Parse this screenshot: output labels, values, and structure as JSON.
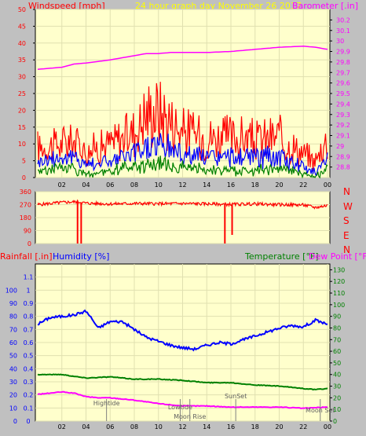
{
  "header": {
    "windspeed_label": "Windspeed [mph]",
    "title": "24 hour graph day   November 26 2017",
    "barometer_label": "Barometer [.in]"
  },
  "lower_header": {
    "rainfall_label": "Rainfall [.in]",
    "humidity_label": "Humidity [%]",
    "temperature_label": "Temperature [°F]",
    "dewpoint_label": "Dew Point [°F]"
  },
  "colors": {
    "background": "#c0c0c0",
    "plot_bg": "#ffffcc",
    "wind_max": "#ff0000",
    "wind_gust": "#0000ff",
    "wind_avg": "#008000",
    "barometer": "#ff00ff",
    "direction": "#ff0000",
    "humidity": "#0000ff",
    "temperature": "#008000",
    "dewpoint": "#ff00ff",
    "rain_axis": "#0000ff",
    "temp_axis": "#008000"
  },
  "x_ticks": [
    "02",
    "04",
    "06",
    "08",
    "10",
    "12",
    "14",
    "16",
    "18",
    "20",
    "22",
    "00"
  ],
  "chart_data": [
    {
      "type": "line",
      "title": "24 hour graph day   November 26 2017",
      "xlabel": "",
      "ylabel": "Windspeed [mph]",
      "y2label": "Barometer [.in]",
      "x_hours": [
        0,
        2,
        3,
        4,
        6,
        8,
        9,
        10,
        11,
        12,
        14,
        16,
        18,
        20,
        22,
        23,
        24
      ],
      "ylim": [
        0,
        50
      ],
      "y_ticks": [
        0,
        5,
        10,
        15,
        20,
        25,
        30,
        35,
        40,
        45,
        50
      ],
      "y2lim": [
        28.7,
        30.3
      ],
      "y2_ticks": [
        "28.8",
        "28.9",
        "29",
        "29.1",
        "29.2",
        "29.3",
        "29.4",
        "29.5",
        "29.6",
        "29.7",
        "29.8",
        "29.9",
        "30",
        "30.1",
        "30.2"
      ],
      "series": [
        {
          "values": [
            9,
            10,
            11,
            8,
            10,
            14,
            19,
            20,
            17,
            14,
            12,
            12,
            11,
            12,
            7,
            5,
            12
          ],
          "axis": "left"
        },
        {
          "values": [
            5,
            6,
            6,
            4,
            5,
            7,
            9,
            10,
            9,
            7,
            6,
            6,
            6,
            6,
            3,
            2,
            6
          ],
          "axis": "left"
        },
        {
          "values": [
            2,
            3,
            3,
            1,
            2,
            3,
            4,
            4,
            4,
            3,
            2,
            2,
            2,
            3,
            1,
            0.5,
            3
          ],
          "axis": "left"
        },
        {
          "values": [
            29.73,
            29.75,
            29.78,
            29.79,
            29.82,
            29.86,
            29.88,
            29.88,
            29.89,
            29.89,
            29.89,
            29.9,
            29.92,
            29.94,
            29.95,
            29.94,
            29.92
          ],
          "axis": "right"
        }
      ]
    },
    {
      "type": "line",
      "ylabel_right": [
        "N",
        "W",
        "S",
        "E",
        "N"
      ],
      "ylim": [
        0,
        360
      ],
      "y_ticks": [
        0,
        90,
        180,
        270,
        360
      ],
      "series": [
        {
          "x_hours": [
            0,
            2,
            3.3,
            4,
            6,
            8,
            10,
            12,
            14,
            16,
            18,
            20,
            22,
            23,
            24
          ],
          "values": [
            270,
            285,
            290,
            280,
            275,
            278,
            276,
            278,
            275,
            272,
            275,
            270,
            268,
            250,
            265
          ]
        }
      ],
      "dips": [
        {
          "hour": 3.3,
          "value": 0
        },
        {
          "hour": 3.6,
          "value": 0
        },
        {
          "hour": 15.5,
          "value": 0
        },
        {
          "hour": 16.1,
          "value": 60
        }
      ]
    },
    {
      "type": "line",
      "xlabel": "",
      "ylabel": "Rainfall [.in]",
      "ylabel2": "Humidity [%]",
      "y2label": "Temperature [°F]",
      "y3label": "Dew Point [°F]",
      "humidity_ticks": [
        0,
        10,
        20,
        30,
        40,
        50,
        60,
        70,
        80,
        90,
        100
      ],
      "ylim": [
        0,
        1.2
      ],
      "y_ticks": [
        "0",
        "0.1",
        "0.2",
        "0.3",
        "0.4",
        "0.5",
        "0.6",
        "0.7",
        "0.8",
        "0.9",
        "1",
        "1.1"
      ],
      "y2lim": [
        0,
        135
      ],
      "y2_ticks": [
        0,
        10,
        20,
        30,
        40,
        50,
        60,
        70,
        80,
        90,
        100,
        110,
        120,
        130
      ],
      "series": [
        {
          "x_hours": [
            0,
            1,
            2,
            3,
            4,
            4.5,
            5,
            6,
            7,
            8,
            9,
            10,
            11,
            12,
            13,
            14,
            15,
            16,
            18,
            20,
            21,
            22,
            23,
            24
          ],
          "values": [
            0.74,
            0.79,
            0.8,
            0.81,
            0.84,
            0.78,
            0.71,
            0.76,
            0.76,
            0.7,
            0.64,
            0.61,
            0.58,
            0.56,
            0.55,
            0.58,
            0.6,
            0.59,
            0.65,
            0.71,
            0.73,
            0.72,
            0.77,
            0.74
          ],
          "axis": "left"
        },
        {
          "x_hours": [
            0,
            2,
            4,
            6,
            8,
            10,
            12,
            14,
            16,
            18,
            20,
            22,
            23,
            24
          ],
          "values": [
            40,
            40,
            37,
            38,
            36,
            36,
            35,
            33,
            33,
            31,
            30,
            28,
            27,
            28
          ],
          "axis": "right"
        },
        {
          "x_hours": [
            0,
            2,
            3,
            4,
            5,
            6,
            8,
            10,
            12,
            14,
            16,
            18,
            20,
            22,
            24
          ],
          "values": [
            23,
            25,
            24,
            21,
            20,
            20,
            18,
            15,
            13,
            13,
            12,
            12,
            12,
            11,
            12
          ],
          "axis": "right"
        }
      ],
      "events": [
        {
          "label": "Hightide",
          "hour": 5.7
        },
        {
          "label": "Lowtide",
          "hour": 11.8
        },
        {
          "label": "Moon Rise",
          "hour": 12.6
        },
        {
          "label": "SunSet",
          "hour": 16.4
        },
        {
          "label": "Moon Set",
          "hour": 23.4
        }
      ]
    }
  ]
}
